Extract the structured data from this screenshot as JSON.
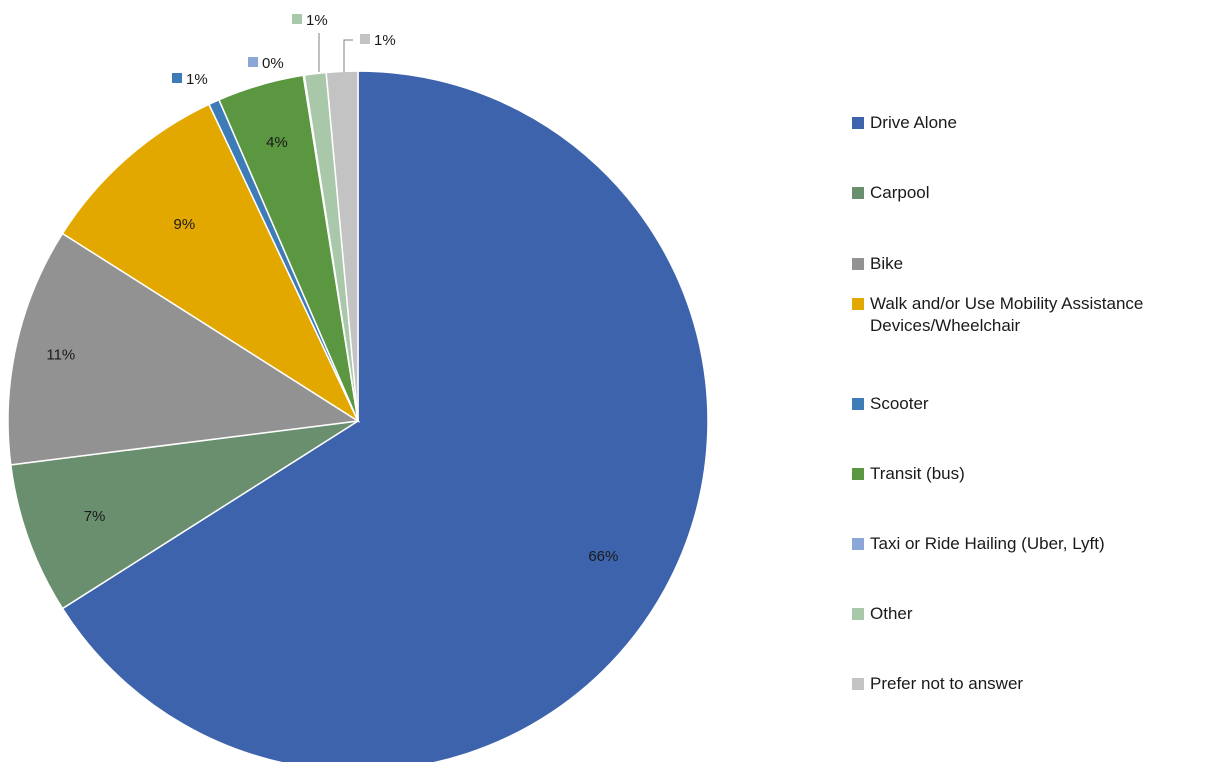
{
  "chart_data": {
    "type": "pie",
    "title": "",
    "start_angle_deg": 0,
    "direction": "clockwise",
    "series": [
      {
        "name": "Drive Alone",
        "value": 66,
        "label": "66%",
        "color": "#3c63ab"
      },
      {
        "name": "Carpool",
        "value": 7,
        "label": "7%",
        "color": "#6a8f6f"
      },
      {
        "name": "Bike",
        "value": 11,
        "label": "11%",
        "color": "#929292"
      },
      {
        "name": "Walk and/or Use Mobility Assistance Devices/Wheelchair",
        "value": 9,
        "label": "9%",
        "color": "#e3a800"
      },
      {
        "name": "Scooter",
        "value": 0.5,
        "label": "1%",
        "color": "#3e7cb7"
      },
      {
        "name": "Transit (bus)",
        "value": 4,
        "label": "4%",
        "color": "#5b9640"
      },
      {
        "name": "Taxi or Ride Hailing (Uber, Lyft)",
        "value": 0.05,
        "label": "0%",
        "color": "#8ba7d7"
      },
      {
        "name": "Other",
        "value": 1,
        "label": "1%",
        "color": "#a9c8a9"
      },
      {
        "name": "Prefer not to answer",
        "value": 1.45,
        "label": "1%",
        "color": "#c3c3c3"
      }
    ],
    "legend_position": "right"
  }
}
